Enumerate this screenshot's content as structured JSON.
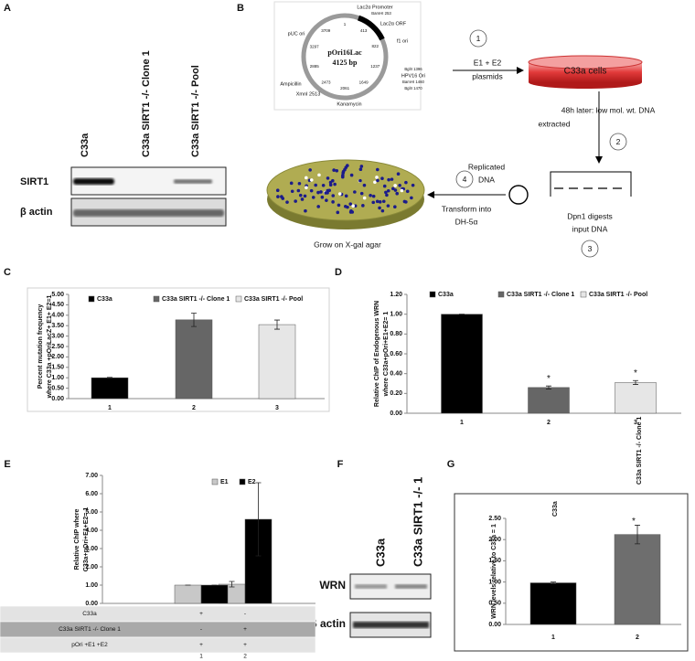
{
  "panel_labels": [
    "A",
    "B",
    "C",
    "D",
    "E",
    "F",
    "G"
  ],
  "blot_a": {
    "lanes": [
      "C33a",
      "C33a SIRT1 -/- Clone 1",
      "C33a SIRT1 -/- Pool"
    ],
    "rows": [
      "SIRT1",
      "β actin"
    ]
  },
  "diagram_b": {
    "plasmid": {
      "name": "pOri16Lac",
      "size": "4125 bp",
      "features": [
        "pUC ori",
        "Lac2α Promoter",
        "BamHI 253",
        "Lac2α ORF",
        "f1 ori",
        "BglII 1396",
        "HPV16 Ori",
        "BamHI 1460",
        "BglII 1470",
        "Kanamycin",
        "XmnI 2513",
        "Ampicillin"
      ],
      "positions": [
        1,
        413,
        822,
        1237,
        1649,
        2061,
        2473,
        2885,
        3297,
        3709
      ]
    },
    "steps": [
      "1",
      "2",
      "3",
      "4"
    ],
    "e1e2": [
      "E1 + E2",
      "plasmids"
    ],
    "cells": "C33a cells",
    "extract": [
      "48h later: low mol. wt. DNA",
      "extracted"
    ],
    "dpn1": [
      "Dpn1 digests",
      "input DNA"
    ],
    "replicated": [
      "Replicated",
      "DNA"
    ],
    "transform": [
      "Transform into",
      "DH-5α"
    ],
    "grow": "Grow on X-gal agar"
  },
  "chart_data": [
    {
      "type": "bar",
      "bar_layout": "overlap",
      "ylabel": [
        "Percent mutation frequency",
        "where C33a +pOriLacZ+ E1+ E2=1"
      ],
      "categories": [
        "1",
        "2",
        "3"
      ],
      "series": [
        {
          "name": "C33a",
          "color": "#000000",
          "values": [
            1.0,
            null,
            null
          ],
          "errors": [
            0.02,
            null,
            null
          ]
        },
        {
          "name": "C33a SIRT1 -/- Clone 1",
          "color": "#666666",
          "values": [
            null,
            3.78,
            null
          ],
          "errors": [
            null,
            0.32,
            null
          ]
        },
        {
          "name": "C33a SIRT1 -/- Pool",
          "color": "#e6e6e6",
          "values": [
            null,
            null,
            3.55
          ],
          "errors": [
            null,
            null,
            0.22
          ]
        }
      ],
      "ylim": [
        0,
        5
      ],
      "yticks": [
        {
          "value": 0,
          "label": "0.00"
        },
        {
          "value": 0.5,
          "label": "0.50"
        },
        {
          "value": 1,
          "label": "1.00"
        },
        {
          "value": 1.5,
          "label": "1.50"
        },
        {
          "value": 2,
          "label": "2.00"
        },
        {
          "value": 2.5,
          "label": "2.50"
        },
        {
          "value": 3,
          "label": "3.00"
        },
        {
          "value": 3.5,
          "label": "3.50"
        },
        {
          "value": 4,
          "label": "4.00"
        },
        {
          "value": 4.5,
          "label": "4.50"
        },
        {
          "value": 5,
          "label": "5.00"
        }
      ],
      "legend": "top"
    },
    {
      "type": "bar",
      "bar_layout": "overlap",
      "ylabel": [
        "Relative ChIP of Endogenous WRN",
        "where C33a+pOri+E1+E2= 1"
      ],
      "categories": [
        "1",
        "2",
        "3"
      ],
      "series": [
        {
          "name": "C33a",
          "color": "#000000",
          "values": [
            1.0,
            null,
            null
          ],
          "errors": [
            0,
            null,
            null
          ]
        },
        {
          "name": "C33a SIRT1 -/- Clone 1",
          "color": "#666666",
          "values": [
            null,
            0.26,
            null
          ],
          "errors": [
            null,
            0.015,
            null
          ]
        },
        {
          "name": "C33a SIRT1 -/- Pool",
          "color": "#e6e6e6",
          "values": [
            null,
            null,
            0.31
          ],
          "errors": [
            null,
            null,
            0.02
          ]
        }
      ],
      "ylim": [
        0,
        1.2
      ],
      "yticks": [
        {
          "value": 0,
          "label": "0.00"
        },
        {
          "value": 0.2,
          "label": "0.20"
        },
        {
          "value": 0.4,
          "label": "0.40"
        },
        {
          "value": 0.6,
          "label": "0.60"
        },
        {
          "value": 0.8,
          "label": "0.80"
        },
        {
          "value": 1,
          "label": "1.00"
        },
        {
          "value": 1.2,
          "label": "1.20"
        }
      ],
      "annotations": [
        "*",
        "*"
      ],
      "legend": "top"
    },
    {
      "type": "bar",
      "bar_layout": "grouped",
      "ylabel": [
        "Relative ChIP where",
        "C33a+pOri+E1+E2= 1"
      ],
      "categories": [
        "1",
        "2"
      ],
      "series": [
        {
          "name": "E1",
          "color": "#c8c8c8",
          "values": [
            1.0,
            1.05
          ],
          "errors": [
            0,
            0.15
          ]
        },
        {
          "name": "E2",
          "color": "#000000",
          "values": [
            1.0,
            4.6
          ],
          "errors": [
            0,
            2.0
          ]
        }
      ],
      "ylim": [
        0,
        7
      ],
      "yticks": [
        {
          "value": 0,
          "label": "0.00"
        },
        {
          "value": 1,
          "label": "1.00"
        },
        {
          "value": 2,
          "label": "2.00"
        },
        {
          "value": 3,
          "label": "3.00"
        },
        {
          "value": 4,
          "label": "4.00"
        },
        {
          "value": 5,
          "label": "5.00"
        },
        {
          "value": 6,
          "label": "6.00"
        },
        {
          "value": 7,
          "label": "7.00"
        }
      ],
      "legend": "top"
    },
    {
      "type": "bar",
      "bar_layout": "overlap",
      "ylabel": [
        "WRN levels relative to C33a = 1"
      ],
      "categories": [
        "1",
        "2"
      ],
      "series": [
        {
          "color": "#000000",
          "values": [
            0.98,
            null
          ],
          "errors": [
            0.02,
            null
          ]
        },
        {
          "color": "#6e6e6e",
          "values": [
            null,
            2.12
          ],
          "errors": [
            null,
            0.22
          ]
        }
      ],
      "ylim": [
        0,
        2.5
      ],
      "yticks": [
        {
          "value": 0,
          "label": "0.00"
        },
        {
          "value": 0.5,
          "label": "0.50"
        },
        {
          "value": 1,
          "label": "1.00"
        },
        {
          "value": 1.5,
          "label": "1.50"
        },
        {
          "value": 2,
          "label": "2.00"
        },
        {
          "value": 2.5,
          "label": "2.50"
        }
      ],
      "annotations": [
        "C33a",
        "C33a SIRT1 -/- Clone 1",
        "*"
      ]
    }
  ],
  "table_e": {
    "rows": [
      [
        "C33a",
        "+",
        "-"
      ],
      [
        "C33a SIRT1 -/- Clone 1",
        "-",
        "+"
      ],
      [
        "pOri +E1 +E2",
        "+",
        "+"
      ]
    ],
    "columns": [
      "1",
      "2"
    ]
  },
  "blot_f": {
    "lanes": [
      "C33a",
      "C33a SIRT1 -/-  1"
    ],
    "rows": [
      "WRN",
      "β actin"
    ]
  }
}
